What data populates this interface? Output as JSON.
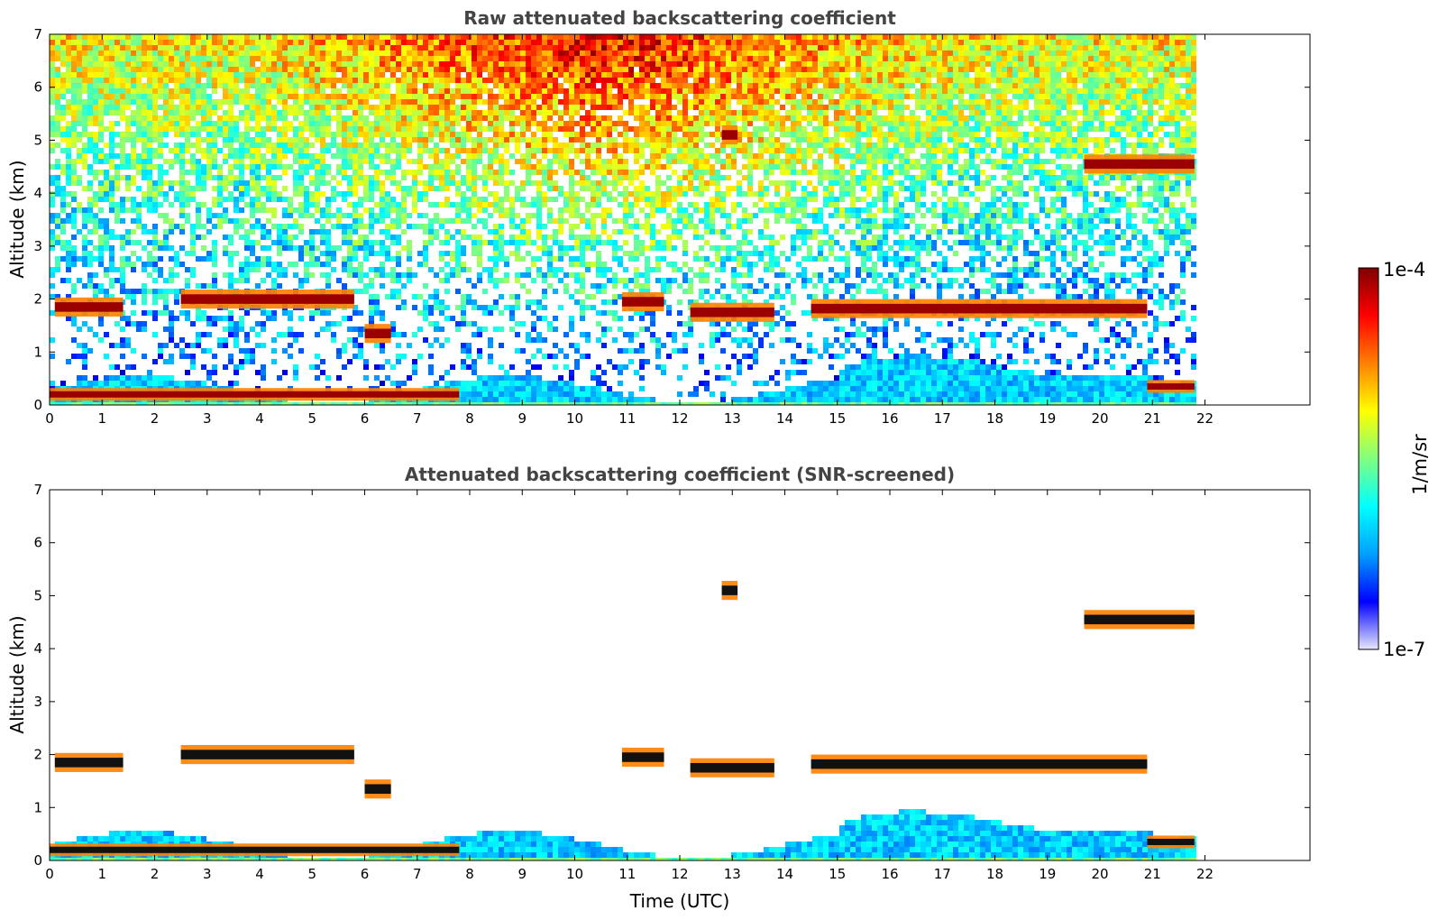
{
  "chart_data": [
    {
      "type": "heatmap",
      "title": "Raw attenuated backscattering coefficient",
      "xlabel": "",
      "ylabel": "Altitude (km)",
      "xlim": [
        0,
        24
      ],
      "ylim": [
        0,
        7
      ],
      "x_ticks": [
        "0",
        "1",
        "2",
        "3",
        "4",
        "5",
        "6",
        "7",
        "8",
        "9",
        "10",
        "11",
        "12",
        "13",
        "14",
        "15",
        "16",
        "17",
        "18",
        "19",
        "20",
        "21",
        "22"
      ],
      "y_ticks": [
        "0",
        "1",
        "2",
        "3",
        "4",
        "5",
        "6",
        "7"
      ],
      "data_end_time": 21.8,
      "layers": [
        {
          "kind": "cloud",
          "t_start": 0.1,
          "t_end": 1.4,
          "altitude": 1.85
        },
        {
          "kind": "cloud",
          "t_start": 2.5,
          "t_end": 5.8,
          "altitude": 2.0
        },
        {
          "kind": "cloud",
          "t_start": 6.0,
          "t_end": 6.5,
          "altitude": 1.35
        },
        {
          "kind": "cloud",
          "t_start": 10.9,
          "t_end": 11.7,
          "altitude": 1.95
        },
        {
          "kind": "cloud",
          "t_start": 12.2,
          "t_end": 13.8,
          "altitude": 1.75
        },
        {
          "kind": "cloud",
          "t_start": 14.5,
          "t_end": 20.9,
          "altitude": 1.82
        },
        {
          "kind": "cloud",
          "t_start": 19.7,
          "t_end": 21.8,
          "altitude": 4.55
        },
        {
          "kind": "cloud",
          "t_start": 12.8,
          "t_end": 13.1,
          "altitude": 5.1
        },
        {
          "kind": "fog",
          "t_start": 0.0,
          "t_end": 7.8,
          "altitude": 0.2
        },
        {
          "kind": "fog",
          "t_start": 20.9,
          "t_end": 21.8,
          "altitude": 0.35
        }
      ]
    },
    {
      "type": "heatmap",
      "title": "Attenuated backscattering coefficient (SNR-screened)",
      "xlabel": "Time (UTC)",
      "ylabel": "Altitude (km)",
      "xlim": [
        0,
        24
      ],
      "ylim": [
        0,
        7
      ],
      "x_ticks": [
        "0",
        "1",
        "2",
        "3",
        "4",
        "5",
        "6",
        "7",
        "8",
        "9",
        "10",
        "11",
        "12",
        "13",
        "14",
        "15",
        "16",
        "17",
        "18",
        "19",
        "20",
        "21",
        "22"
      ],
      "y_ticks": [
        "0",
        "1",
        "2",
        "3",
        "4",
        "5",
        "6",
        "7"
      ],
      "data_end_time": 21.8,
      "layers": [
        {
          "kind": "cloud",
          "t_start": 0.1,
          "t_end": 1.4,
          "altitude": 1.85
        },
        {
          "kind": "cloud",
          "t_start": 2.5,
          "t_end": 5.8,
          "altitude": 2.0
        },
        {
          "kind": "cloud",
          "t_start": 6.0,
          "t_end": 6.5,
          "altitude": 1.35
        },
        {
          "kind": "cloud",
          "t_start": 10.9,
          "t_end": 11.7,
          "altitude": 1.95
        },
        {
          "kind": "cloud",
          "t_start": 12.2,
          "t_end": 13.8,
          "altitude": 1.75
        },
        {
          "kind": "cloud",
          "t_start": 14.5,
          "t_end": 20.9,
          "altitude": 1.82
        },
        {
          "kind": "cloud",
          "t_start": 19.7,
          "t_end": 21.8,
          "altitude": 4.55
        },
        {
          "kind": "cloud",
          "t_start": 12.8,
          "t_end": 13.1,
          "altitude": 5.1
        },
        {
          "kind": "fog",
          "t_start": 0.0,
          "t_end": 7.8,
          "altitude": 0.2
        },
        {
          "kind": "fog",
          "t_start": 20.9,
          "t_end": 21.8,
          "altitude": 0.35
        }
      ]
    }
  ],
  "colorbar": {
    "label": "1/m/sr",
    "max_label": "1e-4",
    "min_label": "1e-7",
    "scale": "log",
    "colormap": "jet",
    "colors": [
      "#e6e6fa",
      "#0000ff",
      "#00a0ff",
      "#00ffff",
      "#80ff80",
      "#ffff00",
      "#ff8000",
      "#ff0000",
      "#800000"
    ]
  }
}
